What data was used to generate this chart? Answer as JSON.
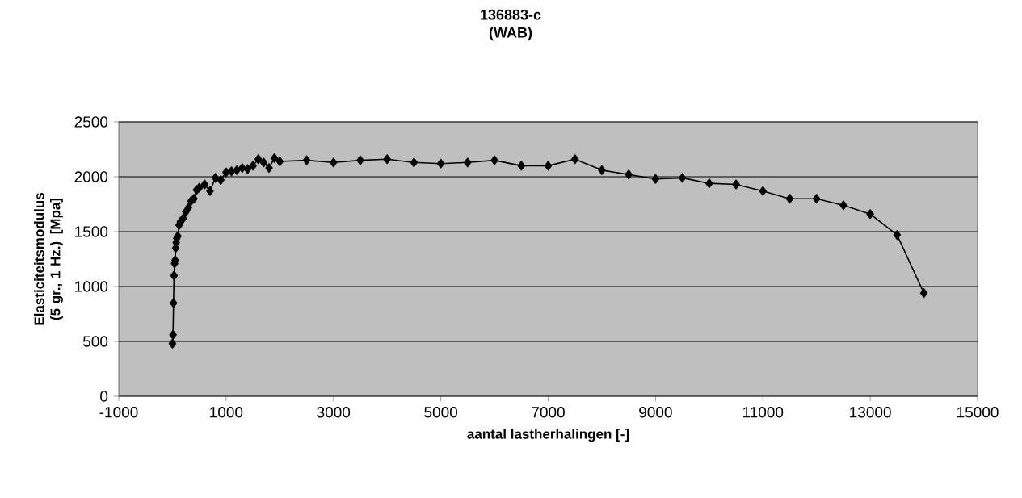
{
  "chart_data": {
    "type": "line",
    "title": "136883-c",
    "subtitle": "(WAB)",
    "xlabel": "aantal lastherhalingen [-]",
    "ylabel": "Elasticiteitsmodulus (5 gr., 1 Hz.) [Mpa]",
    "x": [
      0,
      10,
      20,
      30,
      40,
      50,
      60,
      70,
      80,
      100,
      125,
      150,
      200,
      250,
      300,
      350,
      400,
      450,
      500,
      600,
      700,
      800,
      900,
      1000,
      1100,
      1200,
      1300,
      1400,
      1500,
      1600,
      1700,
      1800,
      1900,
      2000,
      2500,
      3000,
      3500,
      4000,
      4500,
      5000,
      5500,
      6000,
      6500,
      7000,
      7500,
      8000,
      8500,
      9000,
      9500,
      10000,
      10500,
      11000,
      11500,
      12000,
      12500,
      13000,
      13500,
      14000
    ],
    "series": [
      {
        "color": "#000000",
        "values": [
          480,
          560,
          850,
          1100,
          1210,
          1240,
          1350,
          1400,
          1440,
          1460,
          1560,
          1590,
          1620,
          1680,
          1720,
          1780,
          1800,
          1880,
          1900,
          1930,
          1870,
          1990,
          1970,
          2040,
          2050,
          2060,
          2080,
          2070,
          2100,
          2160,
          2130,
          2080,
          2170,
          2140,
          2150,
          2130,
          2150,
          2160,
          2130,
          2120,
          2130,
          2150,
          2100,
          2100,
          2160,
          2060,
          2020,
          1980,
          1990,
          1940,
          1930,
          1870,
          1800,
          1800,
          1740,
          1660,
          1470,
          940
        ]
      }
    ],
    "xlim": [
      -1000,
      15000
    ],
    "ylim": [
      0,
      2500
    ],
    "xticks": [
      -1000,
      1000,
      3000,
      5000,
      7000,
      9000,
      11000,
      13000,
      15000
    ],
    "yticks": [
      0,
      500,
      1000,
      1500,
      2000,
      2500
    ],
    "grid": "y",
    "marker": "diamond",
    "line_style": "solid"
  }
}
